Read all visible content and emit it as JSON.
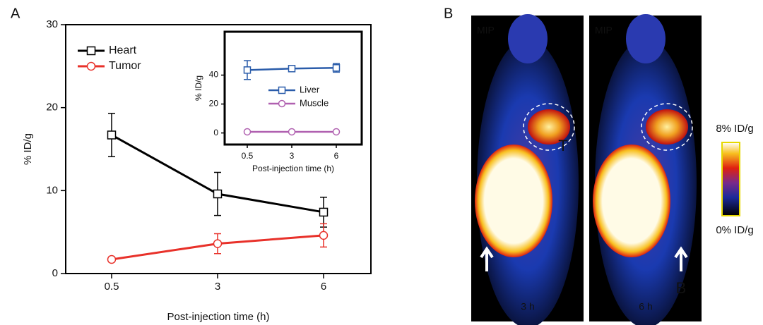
{
  "chart_data": [
    {
      "type": "line",
      "panel_label": "A",
      "x_label": "Post-injection time (h)",
      "y_label": "% ID/g",
      "categories": [
        "0.5",
        "3",
        "6"
      ],
      "ylim": [
        0,
        30
      ],
      "yticks": [
        0,
        10,
        20,
        30
      ],
      "legend": "upper-left",
      "series": [
        {
          "name": "Heart",
          "color": "#000000",
          "marker": "square",
          "values": [
            16.7,
            9.6,
            7.4
          ],
          "errors": [
            2.6,
            2.6,
            1.8
          ]
        },
        {
          "name": "Tumor",
          "color": "#e8312a",
          "marker": "circle",
          "values": [
            1.7,
            3.6,
            4.6
          ],
          "errors": [
            0.3,
            1.2,
            1.4
          ]
        }
      ]
    },
    {
      "type": "line",
      "x_label": "Post-injection time (h)",
      "y_label": "% ID/g",
      "categories": [
        "0.5",
        "3",
        "6"
      ],
      "ylim": [
        -8,
        70
      ],
      "yticks": [
        0,
        20,
        40
      ],
      "legend": "center",
      "series": [
        {
          "name": "Liver",
          "color": "#2a5caa",
          "marker": "square",
          "values": [
            43.5,
            44.5,
            45
          ],
          "errors": [
            6.5,
            1.5,
            3
          ]
        },
        {
          "name": "Muscle",
          "color": "#b060b0",
          "marker": "circle",
          "values": [
            0.8,
            0.8,
            0.8
          ],
          "errors": [
            0.3,
            0.3,
            0.3
          ]
        }
      ]
    }
  ],
  "images": {
    "panel_label": "B",
    "frames": [
      {
        "tag": "MIP",
        "time": "3 h",
        "marker": "T"
      },
      {
        "tag": "MIP",
        "time": "6 h",
        "marker": "B"
      }
    ],
    "colorbar": {
      "max_label": "8% ID/g",
      "min_label": "0% ID/g"
    }
  }
}
